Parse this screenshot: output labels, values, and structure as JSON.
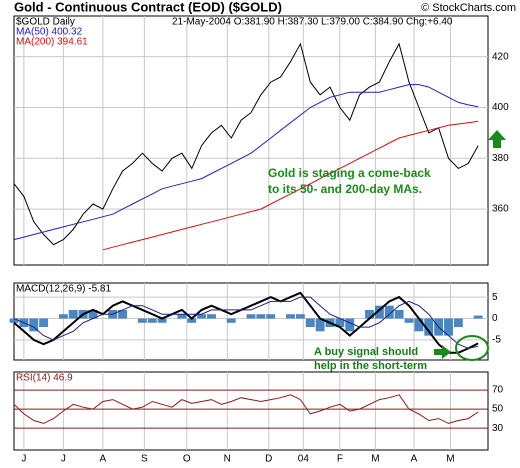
{
  "chart_data": [
    {
      "type": "line",
      "title": "Gold - Continuous Contract (EOD) ($GOLD)",
      "source": "© StockCharts.com",
      "subtitle": "21-May-2004 O:381.90 H:387.30 L:379.00 C:384.90 Chg:+6.40",
      "annotation": [
        "Gold is staging a come-back",
        "to its 50- and 200-day MAs."
      ],
      "x": [
        0,
        1,
        2,
        3,
        4,
        5,
        6,
        7,
        8,
        9,
        10,
        11,
        12,
        13,
        14,
        15,
        16,
        17,
        18,
        19,
        20,
        21,
        22,
        23,
        24,
        25,
        26,
        27,
        28,
        29,
        30,
        31,
        32,
        33,
        34,
        35,
        36,
        37,
        38,
        39,
        40,
        41,
        42,
        43,
        44,
        45,
        46,
        47
      ],
      "xlim": [
        0,
        48
      ],
      "ylim": [
        338,
        436
      ],
      "yticks": [
        360,
        380,
        400,
        420
      ],
      "grid": true,
      "series": [
        {
          "name": "$GOLD Daily",
          "color": "#000000",
          "values": [
            370,
            365,
            355,
            350,
            346,
            348,
            352,
            358,
            362,
            360,
            368,
            375,
            378,
            382,
            378,
            375,
            380,
            382,
            376,
            385,
            390,
            393,
            388,
            395,
            398,
            405,
            410,
            412,
            418,
            425,
            410,
            405,
            408,
            400,
            395,
            405,
            408,
            410,
            418,
            425,
            410,
            400,
            390,
            392,
            380,
            376,
            378,
            384.9
          ]
        },
        {
          "name": "MA(50) 400.32",
          "color": "#2020c0",
          "values": [
            348,
            349,
            350,
            351,
            352,
            353,
            354,
            355,
            356,
            357,
            358,
            360,
            362,
            364,
            366,
            368,
            369,
            370,
            371,
            372,
            374,
            376,
            378,
            380,
            382,
            385,
            388,
            391,
            394,
            397,
            400,
            402,
            404,
            405,
            406,
            406,
            406,
            406,
            407,
            408,
            409,
            409,
            408,
            406,
            404,
            402,
            401,
            400.32
          ]
        },
        {
          "name": "MA(200) 394.61",
          "color": "#d01010",
          "values": [
            null,
            null,
            null,
            null,
            null,
            null,
            null,
            null,
            null,
            344,
            345,
            346,
            347,
            348,
            349,
            350,
            351,
            352,
            353,
            354,
            355,
            356,
            357,
            358,
            359,
            360,
            362,
            364,
            366,
            368,
            370,
            372,
            374,
            376,
            378,
            380,
            382,
            384,
            386,
            388,
            389,
            390,
            391,
            392,
            393,
            393.5,
            394,
            394.61
          ]
        }
      ]
    },
    {
      "type": "line",
      "annotation": [
        "A buy signal should",
        "help in the short-term"
      ],
      "x": [
        0,
        1,
        2,
        3,
        4,
        5,
        6,
        7,
        8,
        9,
        10,
        11,
        12,
        13,
        14,
        15,
        16,
        17,
        18,
        19,
        20,
        21,
        22,
        23,
        24,
        25,
        26,
        27,
        28,
        29,
        30,
        31,
        32,
        33,
        34,
        35,
        36,
        37,
        38,
        39,
        40,
        41,
        42,
        43,
        44,
        45,
        46,
        47
      ],
      "xlim": [
        0,
        48
      ],
      "ylim": [
        -9.7,
        8.3
      ],
      "yticks": [
        -5,
        0,
        5
      ],
      "grid": true,
      "series": [
        {
          "kind": "histogram",
          "color": "#4a86c0",
          "values": [
            -1,
            -2,
            -3,
            -2,
            0,
            1,
            2,
            2,
            2,
            0,
            2,
            2,
            0,
            -1,
            -1,
            -1,
            0,
            1,
            -1,
            1,
            1,
            0,
            -1,
            0,
            1,
            1,
            1,
            0,
            1,
            1,
            -2,
            -3,
            -2,
            -2,
            -3,
            0,
            2,
            3,
            3,
            2,
            -1,
            -3,
            -4,
            -4,
            -4,
            -2,
            0,
            0.69
          ]
        },
        {
          "name": "MACD(12,26,9) -5.81",
          "color": "#000000",
          "width": 2,
          "values": [
            -1,
            -3,
            -5,
            -6,
            -5,
            -3,
            -1,
            1,
            2,
            1,
            3,
            4,
            3,
            2,
            1,
            0,
            1,
            2,
            0,
            2,
            3,
            2,
            1,
            2,
            3,
            4,
            5,
            4,
            5,
            6,
            3,
            0,
            -1,
            -2,
            -4,
            -2,
            0,
            2,
            4,
            5,
            3,
            0,
            -3,
            -6,
            -8,
            -8,
            -7,
            -5.81
          ]
        },
        {
          "color": "#202080",
          "width": 1,
          "values": [
            0,
            -1,
            -2,
            -4,
            -5,
            -4,
            -3,
            -1,
            0,
            1,
            1,
            2,
            3,
            3,
            2,
            1,
            1,
            1,
            1,
            1,
            2,
            2,
            2,
            2,
            2,
            3,
            4,
            4,
            4,
            5,
            5,
            3,
            1,
            0,
            -1,
            -2,
            -2,
            -1,
            1,
            3,
            4,
            3,
            1,
            -2,
            -4,
            -6,
            -7,
            -6.5
          ]
        }
      ]
    },
    {
      "type": "line",
      "x": [
        0,
        1,
        2,
        3,
        4,
        5,
        6,
        7,
        8,
        9,
        10,
        11,
        12,
        13,
        14,
        15,
        16,
        17,
        18,
        19,
        20,
        21,
        22,
        23,
        24,
        25,
        26,
        27,
        28,
        29,
        30,
        31,
        32,
        33,
        34,
        35,
        36,
        37,
        38,
        39,
        40,
        41,
        42,
        43,
        44,
        45,
        46,
        47
      ],
      "xlim": [
        0,
        48
      ],
      "ylim": [
        7,
        89
      ],
      "yticks": [
        30,
        50,
        70
      ],
      "grid": true,
      "grid_color": "#8b1a1a",
      "xticks": [
        {
          "value": 1,
          "label": "J"
        },
        {
          "value": 5,
          "label": "J"
        },
        {
          "value": 9,
          "label": "A"
        },
        {
          "value": 13.2,
          "label": "S"
        },
        {
          "value": 17.5,
          "label": "O"
        },
        {
          "value": 21.6,
          "label": "N"
        },
        {
          "value": 25.8,
          "label": "D"
        },
        {
          "value": 29.3,
          "label": "04"
        },
        {
          "value": 33,
          "label": "F"
        },
        {
          "value": 36.6,
          "label": "M"
        },
        {
          "value": 40.5,
          "label": "A"
        },
        {
          "value": 44.2,
          "label": "M"
        }
      ],
      "series": [
        {
          "name": "RSI(14) 46.9",
          "color": "#8b1a1a",
          "values": [
            55,
            45,
            38,
            35,
            40,
            48,
            55,
            52,
            50,
            58,
            60,
            55,
            50,
            52,
            58,
            55,
            52,
            60,
            56,
            58,
            60,
            55,
            58,
            62,
            60,
            58,
            60,
            62,
            65,
            60,
            45,
            48,
            52,
            55,
            48,
            50,
            55,
            60,
            62,
            65,
            50,
            45,
            38,
            40,
            35,
            38,
            40,
            46.9
          ]
        }
      ]
    }
  ]
}
